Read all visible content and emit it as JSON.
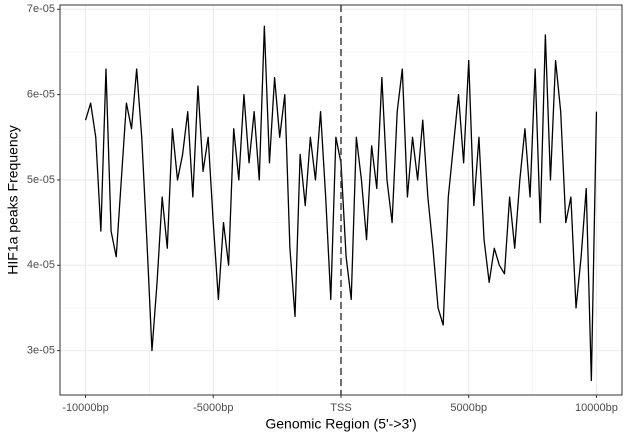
{
  "chart_data": {
    "type": "line",
    "x_label": "Genomic Region (5'->3')",
    "y_label": "HIF1a peaks Frequency",
    "xlim": [
      -11000,
      11000
    ],
    "ylim": [
      2.48e-05,
      7.05e-05
    ],
    "xticks": [
      {
        "value": -10000,
        "label": "-10000bp"
      },
      {
        "value": -5000,
        "label": "-5000bp"
      },
      {
        "value": 0,
        "label": "TSS"
      },
      {
        "value": 5000,
        "label": "5000bp"
      },
      {
        "value": 10000,
        "label": "10000bp"
      }
    ],
    "yticks": [
      {
        "value": 3e-05,
        "label": "3e-05"
      },
      {
        "value": 4e-05,
        "label": "4e-05"
      },
      {
        "value": 5e-05,
        "label": "5e-05"
      },
      {
        "value": 6e-05,
        "label": "6e-05"
      },
      {
        "value": 7e-05,
        "label": "7e-05"
      }
    ],
    "grid": true,
    "vline": 0,
    "x": [
      -10000,
      -9800,
      -9600,
      -9400,
      -9200,
      -9000,
      -8800,
      -8600,
      -8400,
      -8200,
      -8000,
      -7800,
      -7600,
      -7400,
      -7200,
      -7000,
      -6800,
      -6600,
      -6400,
      -6200,
      -6000,
      -5800,
      -5600,
      -5400,
      -5200,
      -5000,
      -4800,
      -4600,
      -4400,
      -4200,
      -4000,
      -3800,
      -3600,
      -3400,
      -3200,
      -3000,
      -2800,
      -2600,
      -2400,
      -2200,
      -2000,
      -1800,
      -1600,
      -1400,
      -1200,
      -1000,
      -800,
      -600,
      -400,
      -200,
      0,
      200,
      400,
      600,
      800,
      1000,
      1200,
      1400,
      1600,
      1800,
      2000,
      2200,
      2400,
      2600,
      2800,
      3000,
      3200,
      3400,
      3600,
      3800,
      4000,
      4200,
      4400,
      4600,
      4800,
      5000,
      5200,
      5400,
      5600,
      5800,
      6000,
      6200,
      6400,
      6600,
      6800,
      7000,
      7200,
      7400,
      7600,
      7800,
      8000,
      8200,
      8400,
      8600,
      8800,
      9000,
      9200,
      9400,
      9600,
      9800,
      10000
    ],
    "series": [
      {
        "color": "#000000",
        "values": [
          5.7e-05,
          5.9e-05,
          5.5e-05,
          4.4e-05,
          6.3e-05,
          4.4e-05,
          4.1e-05,
          5e-05,
          5.9e-05,
          5.6e-05,
          6.3e-05,
          5.5e-05,
          4.3e-05,
          3e-05,
          3.8e-05,
          4.8e-05,
          4.2e-05,
          5.6e-05,
          5e-05,
          5.3e-05,
          5.8e-05,
          4.8e-05,
          6.1e-05,
          5.1e-05,
          5.5e-05,
          4.5e-05,
          3.6e-05,
          4.5e-05,
          4e-05,
          5.6e-05,
          5e-05,
          6e-05,
          5.2e-05,
          5.8e-05,
          5e-05,
          6.8e-05,
          5.2e-05,
          6.2e-05,
          5.5e-05,
          6e-05,
          4.2e-05,
          3.4e-05,
          5.3e-05,
          4.7e-05,
          5.5e-05,
          5e-05,
          5.8e-05,
          4.8e-05,
          3.6e-05,
          5.5e-05,
          5.2e-05,
          4.1e-05,
          3.6e-05,
          5.5e-05,
          5e-05,
          4.3e-05,
          5.4e-05,
          4.9e-05,
          6.2e-05,
          5e-05,
          4.5e-05,
          5.8e-05,
          6.3e-05,
          4.8e-05,
          5.5e-05,
          5e-05,
          5.7e-05,
          4.8e-05,
          4.2e-05,
          3.5e-05,
          3.3e-05,
          4.8e-05,
          5.4e-05,
          6e-05,
          5.2e-05,
          6.4e-05,
          4.7e-05,
          5.5e-05,
          4.3e-05,
          3.8e-05,
          4.2e-05,
          4e-05,
          3.9e-05,
          4.8e-05,
          4.2e-05,
          5e-05,
          5.6e-05,
          4.8e-05,
          6.3e-05,
          4.5e-05,
          6.7e-05,
          5e-05,
          6.4e-05,
          5.8e-05,
          4.5e-05,
          4.8e-05,
          3.5e-05,
          4.1e-05,
          4.9e-05,
          2.65e-05,
          5.8e-05
        ]
      }
    ]
  }
}
